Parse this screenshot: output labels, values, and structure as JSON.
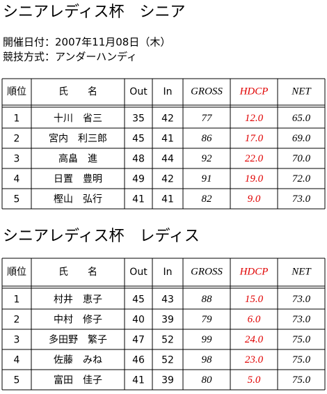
{
  "info": [
    "開催日付：2007年11月08日（木）",
    "競技方式：アンダーハンディ"
  ],
  "sections": [
    {
      "title": "シニアレディス杯　シニア",
      "header": [
        "順位",
        "氏　　名",
        "Out",
        "In",
        "GROSS",
        "HDCP",
        "NET"
      ],
      "rows": [
        [
          "1",
          "十川　省三",
          "35",
          "42",
          "77",
          "12.0",
          "65.0"
        ],
        [
          "2",
          "宮内　利三郎",
          "45",
          "41",
          "86",
          "17.0",
          "69.0"
        ],
        [
          "3",
          "高畠　進",
          "48",
          "44",
          "92",
          "22.0",
          "70.0"
        ],
        [
          "4",
          "日置　豊明",
          "49",
          "42",
          "91",
          "19.0",
          "72.0"
        ],
        [
          "5",
          "樫山　弘行",
          "41",
          "41",
          "82",
          "9.0",
          "73.0"
        ]
      ]
    },
    {
      "title": "シニアレディス杯　レディス",
      "header": [
        "順位",
        "氏　　名",
        "Out",
        "In",
        "GROSS",
        "HDCP",
        "NET"
      ],
      "rows": [
        [
          "1",
          "村井　恵子",
          "45",
          "43",
          "88",
          "15.0",
          "73.0"
        ],
        [
          "2",
          "中村　修子",
          "40",
          "39",
          "79",
          "6.0",
          "73.0"
        ],
        [
          "3",
          "多田野　繁子",
          "47",
          "52",
          "99",
          "24.0",
          "75.0"
        ],
        [
          "4",
          "佐藤　みね",
          "46",
          "52",
          "98",
          "23.0",
          "75.0"
        ],
        [
          "5",
          "富田　佳子",
          "41",
          "39",
          "80",
          "5.0",
          "75.0"
        ]
      ]
    }
  ]
}
